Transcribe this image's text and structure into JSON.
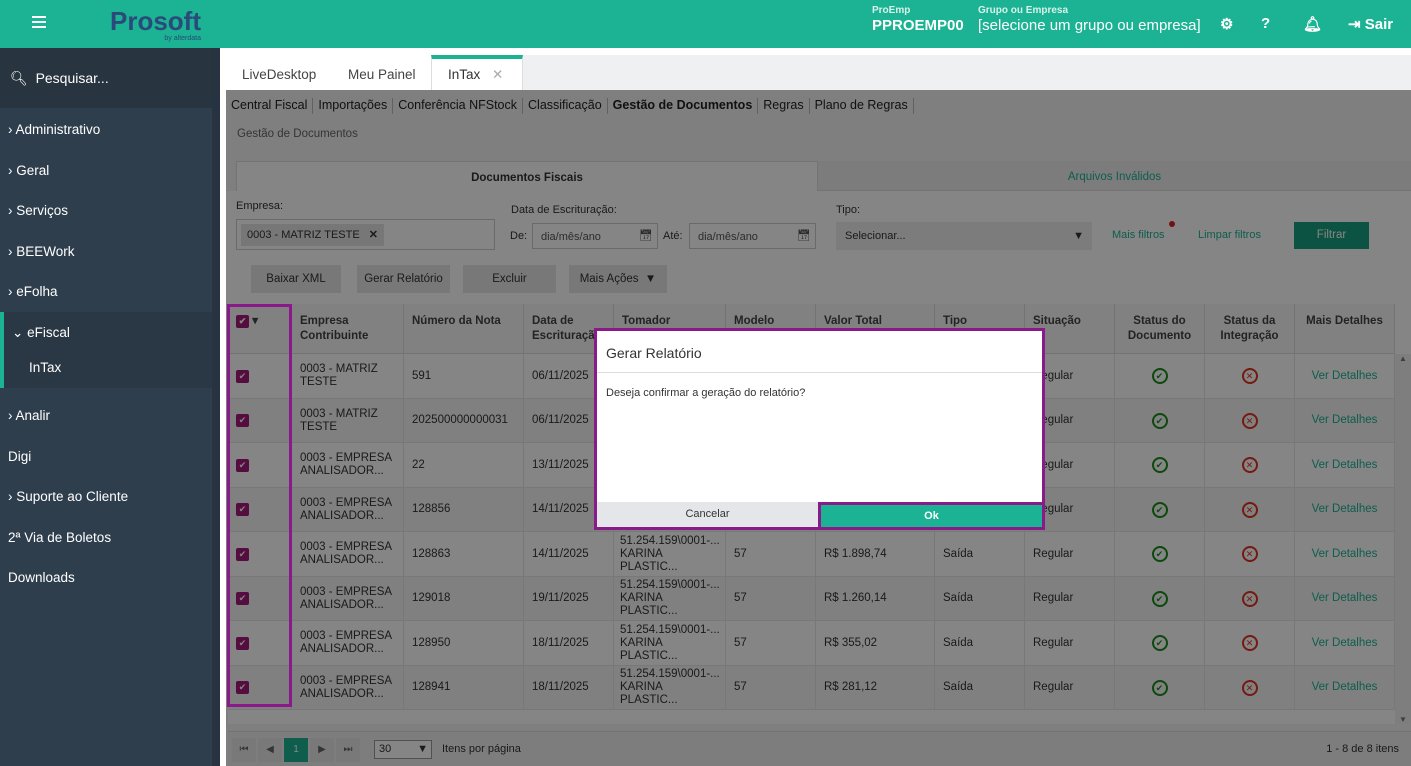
{
  "header": {
    "logo_text": "Prosoft",
    "logo_sub": "by alterdata",
    "proemp_label": "ProEmp",
    "proemp_value": "PPROEMP00",
    "group_label": "Grupo ou Empresa",
    "group_value": "[selecione um grupo ou empresa]",
    "logout": "Sair",
    "brand_color": "#1bb394"
  },
  "sidebar": {
    "search_placeholder": "Pesquisar...",
    "items": [
      {
        "label": "Administrativo"
      },
      {
        "label": "Geral"
      },
      {
        "label": "Serviços"
      },
      {
        "label": "BEEWork"
      },
      {
        "label": "eFolha"
      },
      {
        "label": "eFiscal"
      },
      {
        "label": "InTax"
      },
      {
        "label": "Analir"
      },
      {
        "label": "Digi"
      },
      {
        "label": "Suporte ao Cliente"
      },
      {
        "label": "2ª Via de Boletos"
      },
      {
        "label": "Downloads"
      }
    ]
  },
  "tabs": [
    {
      "label": "LiveDesktop"
    },
    {
      "label": "Meu Painel"
    },
    {
      "label": "InTax"
    }
  ],
  "subnav": [
    "Central Fiscal",
    "Importações",
    "Conferência NFStock",
    "Classificação",
    "Gestão de Documentos",
    "Regras",
    "Plano de Regras"
  ],
  "breadcrumb": "Gestão de Documentos",
  "doc_tabs": {
    "fiscais": "Documentos Fiscais",
    "invalidos": "Arquivos Inválidos"
  },
  "filters": {
    "empresa_label": "Empresa:",
    "empresa_chip": "0003 - MATRIZ TESTE",
    "data_label": "Data de Escrituração:",
    "de": "De:",
    "ate": "Até:",
    "date_placeholder": "dia/mês/ano",
    "tipo_label": "Tipo:",
    "tipo_value": "Selecionar...",
    "mais_filtros": "Mais filtros",
    "limpar": "Limpar filtros",
    "filtrar": "Filtrar"
  },
  "actions": {
    "baixar": "Baixar XML",
    "gerar": "Gerar Relatório",
    "excluir": "Excluir",
    "mais": "Mais Ações"
  },
  "table": {
    "headers": [
      "Empresa Contribuinte",
      "Número da Nota",
      "Data de Escrituração",
      "Tomador",
      "Modelo",
      "Valor Total",
      "Tipo",
      "Situação",
      "Status do Documento",
      "Status da Integração",
      "Mais Detalhes"
    ],
    "rows": [
      {
        "empresa": "0003 - MATRIZ TESTE",
        "numero": "591",
        "data": "06/11/2025",
        "tomador": "",
        "modelo": "",
        "valor": "",
        "tipo": "",
        "situacao": "Regular",
        "status_doc": "ok",
        "status_int": "error",
        "detalhes": "Ver Detalhes"
      },
      {
        "empresa": "0003 - MATRIZ TESTE",
        "numero": "202500000000031",
        "data": "06/11/2025",
        "tomador": "",
        "modelo": "",
        "valor": "",
        "tipo": "",
        "situacao": "Regular",
        "status_doc": "ok",
        "status_int": "error",
        "detalhes": "Ver Detalhes"
      },
      {
        "empresa": "0003 - EMPRESA ANALISADOR...",
        "numero": "22",
        "data": "13/11/2025",
        "tomador": "",
        "modelo": "",
        "valor": "",
        "tipo": "",
        "situacao": "Regular",
        "status_doc": "ok",
        "status_int": "error",
        "detalhes": "Ver Detalhes"
      },
      {
        "empresa": "0003 - EMPRESA ANALISADOR...",
        "numero": "128856",
        "data": "14/11/2025",
        "tomador": "",
        "modelo": "",
        "valor": "",
        "tipo": "",
        "situacao": "Regular",
        "status_doc": "ok",
        "status_int": "error",
        "detalhes": "Ver Detalhes"
      },
      {
        "empresa": "0003 - EMPRESA ANALISADOR...",
        "numero": "128863",
        "data": "14/11/2025",
        "tomador": "51.254.159\\0001-... KARINA PLASTIC...",
        "modelo": "57",
        "valor": "R$ 1.898,74",
        "tipo": "Saída",
        "situacao": "Regular",
        "status_doc": "ok",
        "status_int": "error",
        "detalhes": "Ver Detalhes"
      },
      {
        "empresa": "0003 - EMPRESA ANALISADOR...",
        "numero": "129018",
        "data": "19/11/2025",
        "tomador": "51.254.159\\0001-... KARINA PLASTIC...",
        "modelo": "57",
        "valor": "R$ 1.260,14",
        "tipo": "Saída",
        "situacao": "Regular",
        "status_doc": "ok",
        "status_int": "error",
        "detalhes": "Ver Detalhes"
      },
      {
        "empresa": "0003 - EMPRESA ANALISADOR...",
        "numero": "128950",
        "data": "18/11/2025",
        "tomador": "51.254.159\\0001-... KARINA PLASTIC...",
        "modelo": "57",
        "valor": "R$ 355,02",
        "tipo": "Saída",
        "situacao": "Regular",
        "status_doc": "ok",
        "status_int": "error",
        "detalhes": "Ver Detalhes"
      },
      {
        "empresa": "0003 - EMPRESA ANALISADOR...",
        "numero": "128941",
        "data": "18/11/2025",
        "tomador": "51.254.159\\0001-... KARINA PLASTIC...",
        "modelo": "57",
        "valor": "R$ 281,12",
        "tipo": "Saída",
        "situacao": "Regular",
        "status_doc": "ok",
        "status_int": "error",
        "detalhes": "Ver Detalhes"
      }
    ]
  },
  "pager": {
    "page": "1",
    "per_page": "30",
    "per_page_label": "Itens por página",
    "summary": "1 - 8 de 8 itens"
  },
  "dialog": {
    "title": "Gerar Relatório",
    "message": "Deseja confirmar a geração do relatório?",
    "cancel": "Cancelar",
    "ok": "Ok"
  }
}
